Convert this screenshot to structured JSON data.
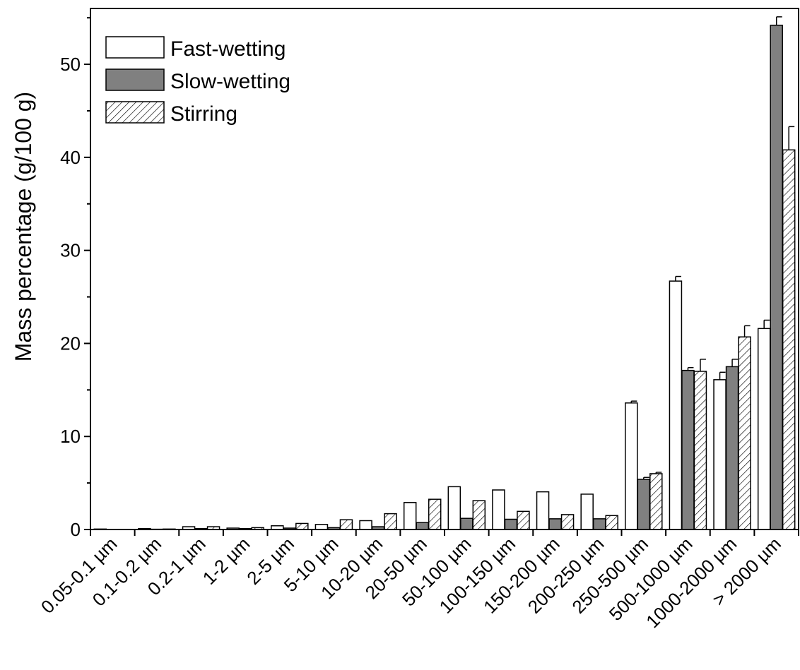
{
  "chart_data": {
    "type": "bar",
    "title": "",
    "xlabel": "",
    "ylabel": "Mass percentage (g/100 g)",
    "ylim": [
      0,
      56
    ],
    "yticks": [
      0,
      10,
      20,
      30,
      40,
      50
    ],
    "grid": false,
    "legend_position": "top-left",
    "categories": [
      "0.05-0.1 µm",
      "0.1-0.2 µm",
      "0.2-1 µm",
      "1-2 µm",
      "2-5 µm",
      "5-10 µm",
      "10-20 µm",
      "20-50 µm",
      "50-100 µm",
      "100-150 µm",
      "150-200 µm",
      "200-250 µm",
      "250-500 µm",
      "500-1000 µm",
      "1000-2000 µm",
      "> 2000 µm"
    ],
    "series": [
      {
        "name": "Fast-wetting",
        "color": "#ffffff",
        "pattern": "none",
        "values": [
          0.05,
          0.1,
          0.3,
          0.15,
          0.4,
          0.55,
          0.95,
          2.9,
          4.6,
          4.25,
          4.05,
          3.8,
          13.6,
          26.7,
          16.1,
          21.6
        ],
        "errors": [
          0,
          0,
          0,
          0,
          0,
          0,
          0,
          0,
          0,
          0,
          0,
          0,
          0.2,
          0.5,
          0.8,
          0.9
        ]
      },
      {
        "name": "Slow-wetting",
        "color": "#808080",
        "pattern": "solid",
        "values": [
          0.02,
          0.03,
          0.1,
          0.1,
          0.15,
          0.2,
          0.3,
          0.75,
          1.2,
          1.1,
          1.15,
          1.15,
          5.4,
          17.1,
          17.5,
          54.2
        ],
        "errors": [
          0,
          0,
          0,
          0,
          0,
          0,
          0,
          0,
          0,
          0,
          0,
          0,
          0.2,
          0.3,
          0.8,
          0.9
        ]
      },
      {
        "name": "Stirring",
        "color": "#ffffff",
        "pattern": "hatch",
        "values": [
          0.02,
          0.05,
          0.3,
          0.2,
          0.65,
          1.05,
          1.7,
          3.25,
          3.1,
          1.95,
          1.6,
          1.5,
          6.0,
          17.0,
          20.7,
          40.8
        ],
        "errors": [
          0,
          0,
          0,
          0,
          0,
          0,
          0,
          0,
          0,
          0,
          0,
          0,
          0.15,
          1.3,
          1.2,
          2.5
        ]
      }
    ]
  }
}
